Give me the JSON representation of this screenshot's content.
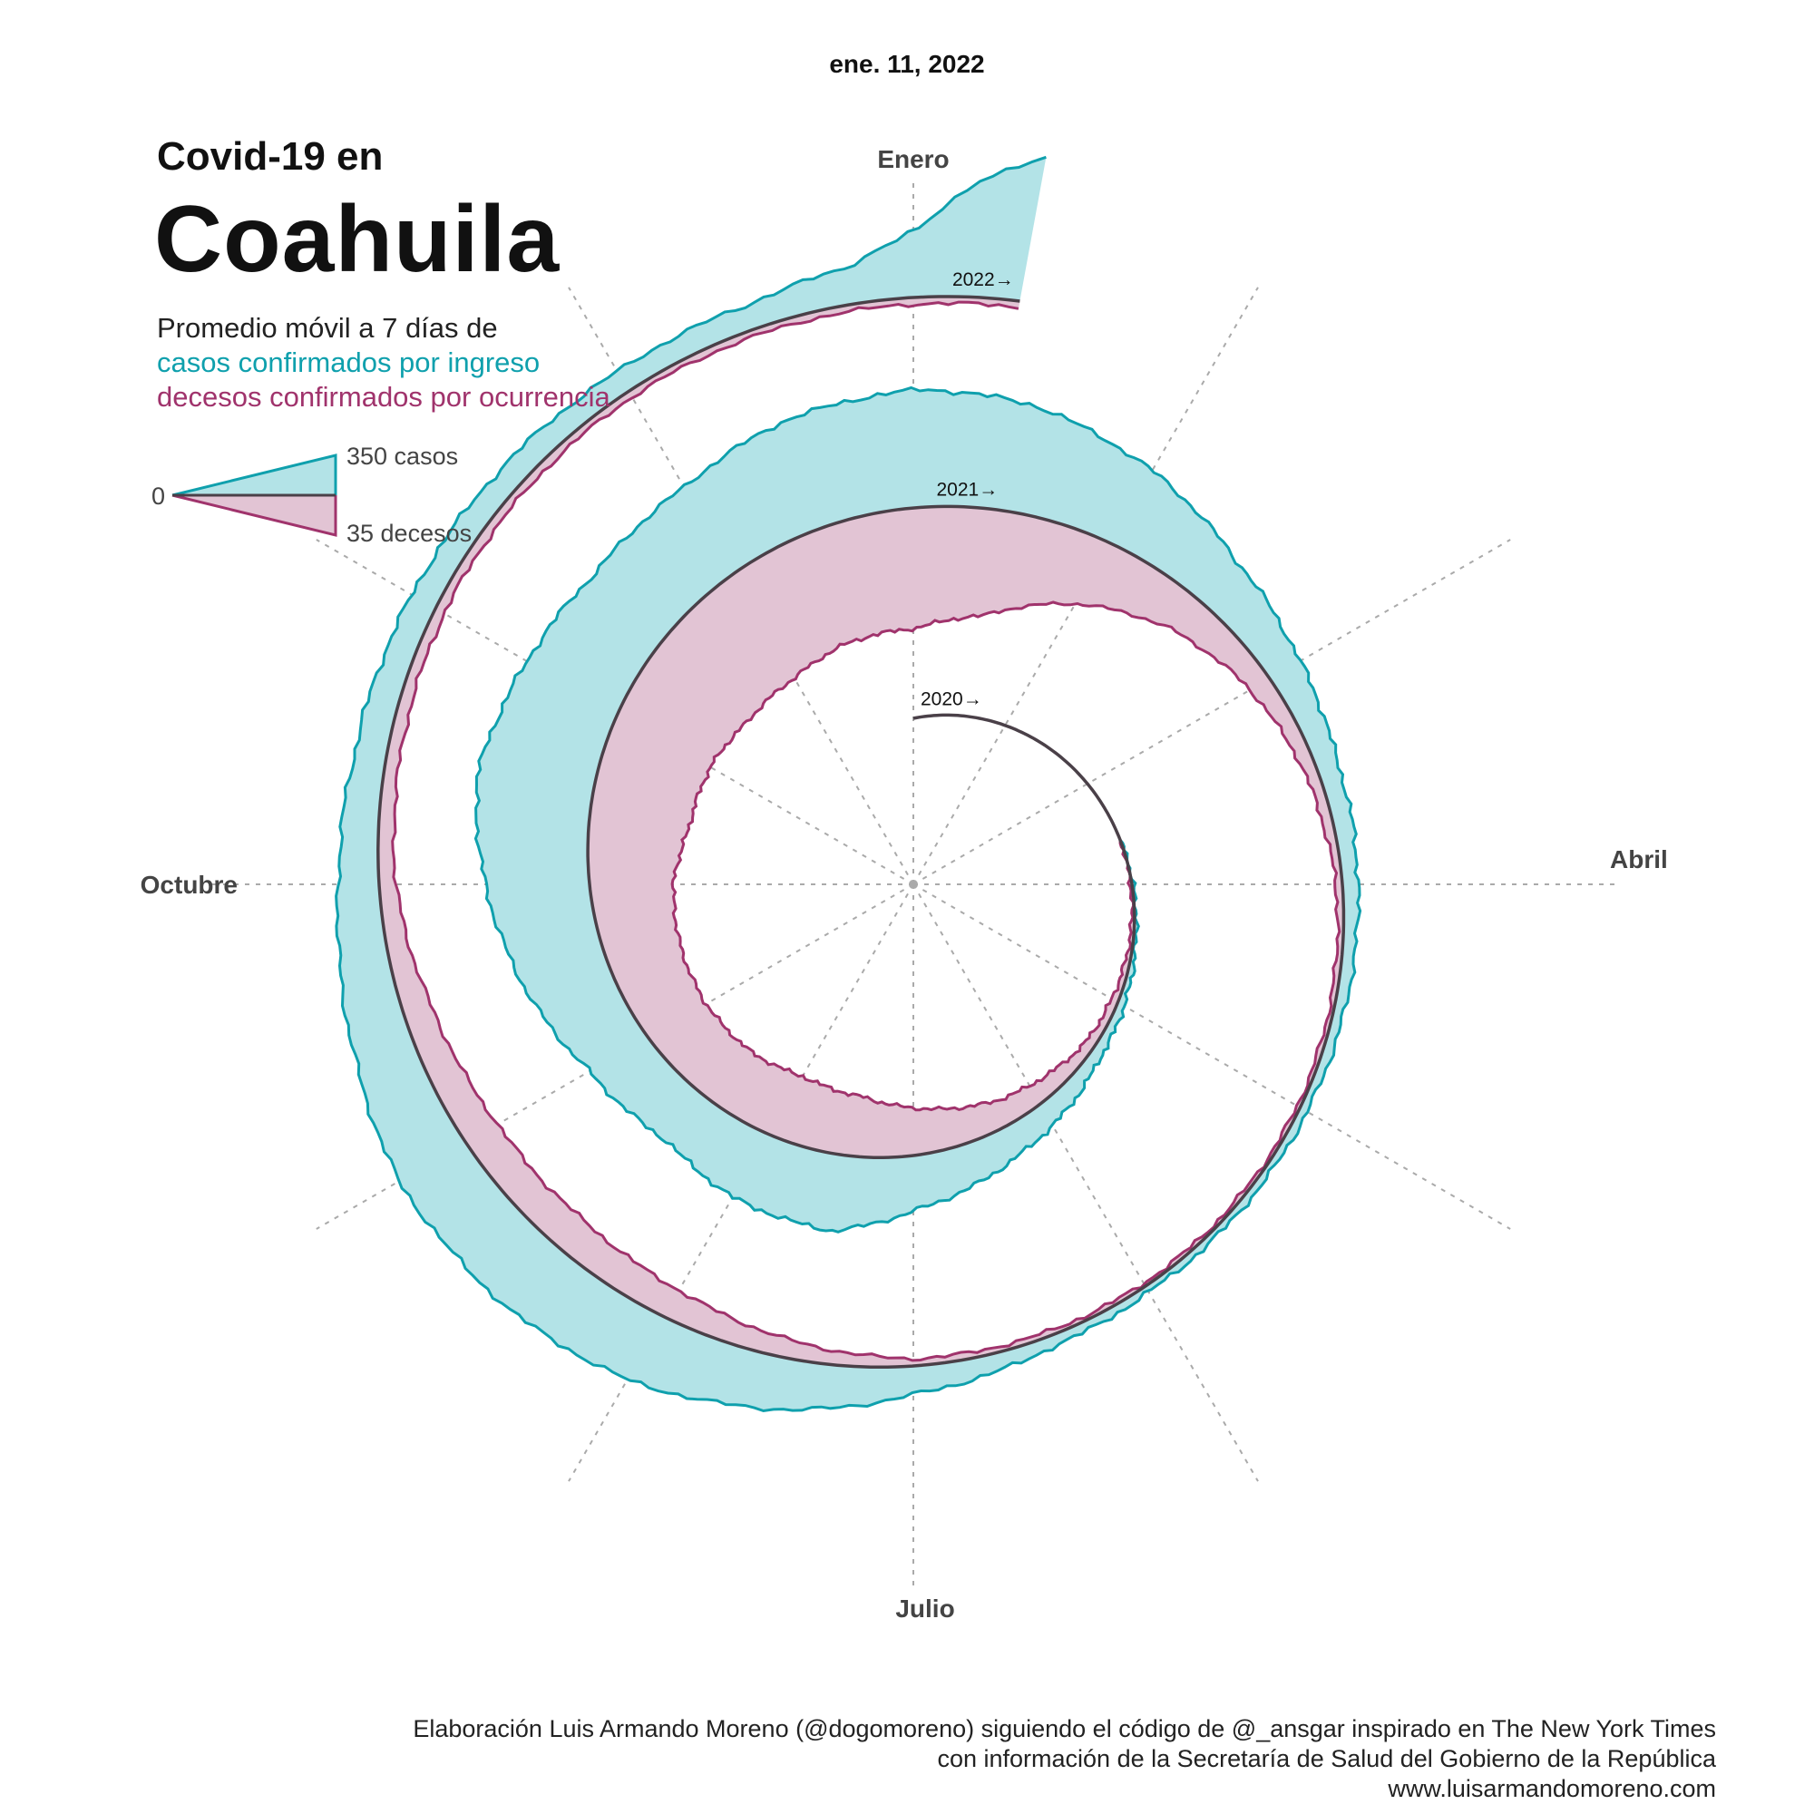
{
  "header": {
    "date": "ene. 11, 2022",
    "title_pre": "Covid-19 en",
    "title_main": "Coahuila",
    "subtitle_line1": "Promedio móvil a 7 días de",
    "subtitle_cases": "casos confirmados por ingreso",
    "subtitle_deaths": "decesos confirmados por ocurrencia"
  },
  "legend": {
    "zero": "0",
    "cases_max": "350 casos",
    "deaths_max": "35 decesos"
  },
  "credits": {
    "line1": "Elaboración Luis Armando Moreno (@dogomoreno) siguiendo el código de @_ansgar inspirado en The New York Times",
    "line2": "con información de la Secretaría de Salud del Gobierno de la República",
    "line3": "www.luisarmandomoreno.com"
  },
  "colors": {
    "cases_line": "#0fa0ad",
    "cases_fill": "#b3e3e7",
    "deaths_line": "#a0336c",
    "deaths_fill": "#e2c4d4",
    "baseline": "#4a4048",
    "grid": "#aaaaaa"
  },
  "chart_data": {
    "type": "area",
    "layout": "spiral",
    "description_units": "7-day rolling average per day",
    "month_labels": [
      "Enero",
      "Abril",
      "Julio",
      "Octubre"
    ],
    "year_labels": [
      "2020→",
      "2021→",
      "2022→"
    ],
    "legend_scale": {
      "cases": 350,
      "deaths": 35
    },
    "series": [
      {
        "name": "casos confirmados por ingreso",
        "unit": "casos",
        "points": [
          {
            "date": "2020-03-20",
            "value": 0
          },
          {
            "date": "2020-04-15",
            "value": 5
          },
          {
            "date": "2020-05-15",
            "value": 25
          },
          {
            "date": "2020-06-10",
            "value": 70
          },
          {
            "date": "2020-07-01",
            "value": 120
          },
          {
            "date": "2020-07-15",
            "value": 170
          },
          {
            "date": "2020-08-01",
            "value": 160
          },
          {
            "date": "2020-08-15",
            "value": 130
          },
          {
            "date": "2020-09-01",
            "value": 150
          },
          {
            "date": "2020-09-15",
            "value": 190
          },
          {
            "date": "2020-10-01",
            "value": 230
          },
          {
            "date": "2020-10-15",
            "value": 260
          },
          {
            "date": "2020-11-01",
            "value": 230
          },
          {
            "date": "2020-11-15",
            "value": 210
          },
          {
            "date": "2020-12-01",
            "value": 220
          },
          {
            "date": "2020-12-15",
            "value": 250
          },
          {
            "date": "2021-01-01",
            "value": 260
          },
          {
            "date": "2021-01-15",
            "value": 240
          },
          {
            "date": "2021-02-01",
            "value": 180
          },
          {
            "date": "2021-02-15",
            "value": 120
          },
          {
            "date": "2021-03-01",
            "value": 80
          },
          {
            "date": "2021-03-15",
            "value": 50
          },
          {
            "date": "2021-04-01",
            "value": 35
          },
          {
            "date": "2021-04-15",
            "value": 25
          },
          {
            "date": "2021-05-01",
            "value": 18
          },
          {
            "date": "2021-05-15",
            "value": 15
          },
          {
            "date": "2021-06-01",
            "value": 14
          },
          {
            "date": "2021-06-15",
            "value": 25
          },
          {
            "date": "2021-07-01",
            "value": 60
          },
          {
            "date": "2021-07-15",
            "value": 110
          },
          {
            "date": "2021-08-01",
            "value": 160
          },
          {
            "date": "2021-08-15",
            "value": 175
          },
          {
            "date": "2021-09-01",
            "value": 170
          },
          {
            "date": "2021-09-15",
            "value": 130
          },
          {
            "date": "2021-10-01",
            "value": 90
          },
          {
            "date": "2021-10-15",
            "value": 70
          },
          {
            "date": "2021-11-01",
            "value": 60
          },
          {
            "date": "2021-11-15",
            "value": 55
          },
          {
            "date": "2021-12-01",
            "value": 50
          },
          {
            "date": "2021-12-15",
            "value": 55
          },
          {
            "date": "2021-12-25",
            "value": 80
          },
          {
            "date": "2022-01-01",
            "value": 150
          },
          {
            "date": "2022-01-06",
            "value": 260
          },
          {
            "date": "2022-01-11",
            "value": 320
          }
        ]
      },
      {
        "name": "decesos confirmados por ocurrencia",
        "unit": "decesos",
        "points": [
          {
            "date": "2020-03-20",
            "value": 0
          },
          {
            "date": "2020-04-15",
            "value": 1
          },
          {
            "date": "2020-05-15",
            "value": 3
          },
          {
            "date": "2020-06-10",
            "value": 8
          },
          {
            "date": "2020-07-01",
            "value": 14
          },
          {
            "date": "2020-07-15",
            "value": 18
          },
          {
            "date": "2020-08-01",
            "value": 20
          },
          {
            "date": "2020-08-15",
            "value": 19
          },
          {
            "date": "2020-09-01",
            "value": 20
          },
          {
            "date": "2020-09-15",
            "value": 22
          },
          {
            "date": "2020-10-01",
            "value": 25
          },
          {
            "date": "2020-10-15",
            "value": 30
          },
          {
            "date": "2020-11-01",
            "value": 32
          },
          {
            "date": "2020-11-15",
            "value": 35
          },
          {
            "date": "2020-12-01",
            "value": 36
          },
          {
            "date": "2020-12-15",
            "value": 35
          },
          {
            "date": "2021-01-01",
            "value": 36
          },
          {
            "date": "2021-01-15",
            "value": 32
          },
          {
            "date": "2021-02-01",
            "value": 20
          },
          {
            "date": "2021-02-15",
            "value": 12
          },
          {
            "date": "2021-03-01",
            "value": 7
          },
          {
            "date": "2021-03-15",
            "value": 4
          },
          {
            "date": "2021-04-01",
            "value": 2
          },
          {
            "date": "2021-05-01",
            "value": 1
          },
          {
            "date": "2021-06-01",
            "value": 1
          },
          {
            "date": "2021-07-01",
            "value": 2
          },
          {
            "date": "2021-07-15",
            "value": 5
          },
          {
            "date": "2021-08-01",
            "value": 9
          },
          {
            "date": "2021-08-15",
            "value": 11
          },
          {
            "date": "2021-09-01",
            "value": 11
          },
          {
            "date": "2021-09-15",
            "value": 9
          },
          {
            "date": "2021-10-01",
            "value": 5
          },
          {
            "date": "2021-11-01",
            "value": 3
          },
          {
            "date": "2021-12-01",
            "value": 2
          },
          {
            "date": "2022-01-01",
            "value": 2
          },
          {
            "date": "2022-01-11",
            "value": 2
          }
        ]
      }
    ]
  }
}
